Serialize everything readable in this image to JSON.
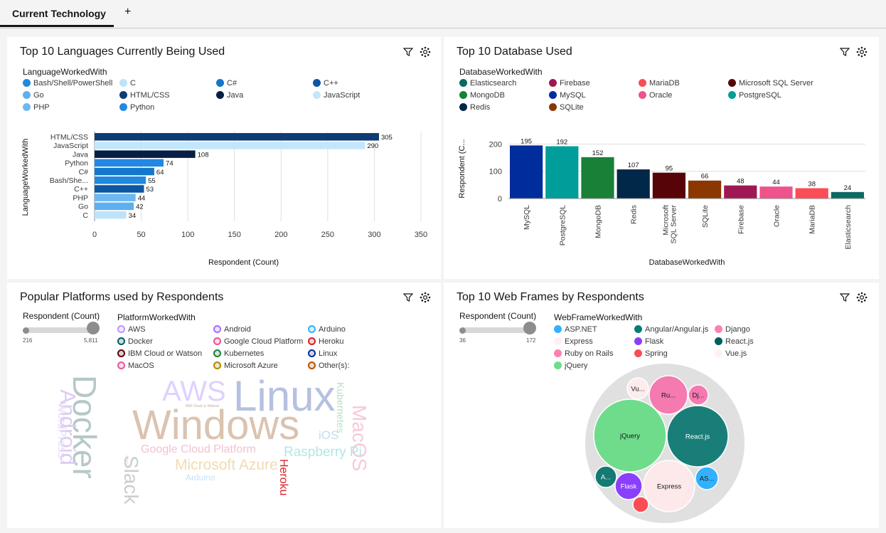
{
  "tabs": {
    "active": "Current Technology",
    "add": "+"
  },
  "panels": {
    "languages": {
      "title": "Top 10 Languages Currently Being Used",
      "legend_title": "LanguageWorkedWith"
    },
    "databases": {
      "title": "Top 10 Database Used",
      "legend_title": "DatabaseWorkedWith"
    },
    "platforms": {
      "title": "Popular Platforms used by Respondents",
      "legend_title": "PlatformWorkedWith",
      "slider_title": "Respondent (Count)",
      "slider_min": "216",
      "slider_max": "5,811"
    },
    "webframes": {
      "title": "Top 10 Web Frames by Respondents",
      "legend_title": "WebFrameWorkedWith",
      "slider_title": "Respondent (Count)",
      "slider_min": "36",
      "slider_max": "172"
    }
  },
  "icons": {
    "filter": "filter-icon",
    "settings": "settings-icon"
  },
  "legends": {
    "languages": [
      {
        "label": "Bash/Shell/PowerShell",
        "color": "#1f8ae0"
      },
      {
        "label": "C",
        "color": "#bde3f8"
      },
      {
        "label": "C#",
        "color": "#1477c9"
      },
      {
        "label": "C++",
        "color": "#0b57a4"
      },
      {
        "label": "Go",
        "color": "#5eaff0"
      },
      {
        "label": "HTML/CSS",
        "color": "#0f3c73"
      },
      {
        "label": "Java",
        "color": "#071f45"
      },
      {
        "label": "JavaScript",
        "color": "#c4e6fb"
      },
      {
        "label": "PHP",
        "color": "#6cb9f2"
      },
      {
        "label": "Python",
        "color": "#2288e3"
      }
    ],
    "databases": [
      {
        "label": "Elasticsearch",
        "color": "#0b6a63"
      },
      {
        "label": "Firebase",
        "color": "#9f1853"
      },
      {
        "label": "MariaDB",
        "color": "#fa4d56"
      },
      {
        "label": "Microsoft SQL Server",
        "color": "#570408"
      },
      {
        "label": "MongoDB",
        "color": "#198038"
      },
      {
        "label": "MySQL",
        "color": "#002d9c"
      },
      {
        "label": "Oracle",
        "color": "#ee538b"
      },
      {
        "label": "PostgreSQL",
        "color": "#009d9a"
      },
      {
        "label": "Redis",
        "color": "#012749"
      },
      {
        "label": "SQLite",
        "color": "#8a3800"
      }
    ],
    "platforms": [
      {
        "label": "AWS",
        "color": "#be95ff"
      },
      {
        "label": "Android",
        "color": "#a56eff"
      },
      {
        "label": "Arduino",
        "color": "#33b1ff"
      },
      {
        "label": "Docker",
        "color": "#005d5d"
      },
      {
        "label": "Google Cloud Platform",
        "color": "#ee538b"
      },
      {
        "label": "Heroku",
        "color": "#da1e28"
      },
      {
        "label": "IBM Cloud or Watson",
        "color": "#570408"
      },
      {
        "label": "Kubernetes",
        "color": "#198038"
      },
      {
        "label": "Linux",
        "color": "#002d9c"
      },
      {
        "label": "MacOS",
        "color": "#ee5396"
      },
      {
        "label": "Microsoft Azure",
        "color": "#b28600"
      },
      {
        "label": "Other(s):",
        "color": "#ba4e00"
      }
    ],
    "webframes": [
      {
        "label": "ASP.NET",
        "color": "#33b1ff"
      },
      {
        "label": "Angular/Angular.js",
        "color": "#007d79"
      },
      {
        "label": "Django",
        "color": "#ff7eb6"
      },
      {
        "label": "Express",
        "color": "#fff1f1"
      },
      {
        "label": "Flask",
        "color": "#8a3ffc"
      },
      {
        "label": "React.js",
        "color": "#005d5d"
      },
      {
        "label": "Ruby on Rails",
        "color": "#ff7eb6"
      },
      {
        "label": "Spring",
        "color": "#fa4d56"
      },
      {
        "label": "Vue.js",
        "color": "#fff1f1"
      },
      {
        "label": "jQuery",
        "color": "#6fdc8c"
      }
    ]
  },
  "chart_data": [
    {
      "type": "bar",
      "orientation": "horizontal",
      "title": "Top 10 Languages Currently Being Used",
      "categories": [
        "HTML/CSS",
        "JavaScript",
        "Java",
        "Python",
        "C#",
        "Bash/She...",
        "C++",
        "PHP",
        "Go",
        "C"
      ],
      "values": [
        305,
        290,
        108,
        74,
        64,
        55,
        53,
        44,
        42,
        34
      ],
      "colors": [
        "#0f3c73",
        "#c4e6fb",
        "#071f45",
        "#2288e3",
        "#1477c9",
        "#1f8ae0",
        "#0b57a4",
        "#6cb9f2",
        "#5eaff0",
        "#bde3f8"
      ],
      "xlabel": "Respondent (Count)",
      "ylabel": "LanguageWorkedWith",
      "xlim": [
        0,
        350
      ],
      "xticks": [
        0,
        50,
        100,
        150,
        200,
        250,
        300,
        350
      ]
    },
    {
      "type": "bar",
      "orientation": "vertical",
      "title": "Top 10 Database Used",
      "categories": [
        "MySQL",
        "PostgreSQL",
        "MongoDB",
        "Redis",
        "Microsoft SQL Server",
        "SQLite",
        "Firebase",
        "Oracle",
        "MariaDB",
        "Elasticsearch"
      ],
      "tick_lines": [
        [
          "MySQL"
        ],
        [
          "PostgreSQL"
        ],
        [
          "MongoDB"
        ],
        [
          "Redis"
        ],
        [
          "Microsoft",
          "SQL Server"
        ],
        [
          "SQLite"
        ],
        [
          "Firebase"
        ],
        [
          "Oracle"
        ],
        [
          "MariaDB"
        ],
        [
          "Elasticsearch"
        ]
      ],
      "values": [
        195,
        192,
        152,
        107,
        95,
        66,
        48,
        44,
        38,
        24
      ],
      "colors": [
        "#002d9c",
        "#009d9a",
        "#198038",
        "#012749",
        "#570408",
        "#8a3800",
        "#9f1853",
        "#ee538b",
        "#fa4d56",
        "#0b6a63"
      ],
      "xlabel": "DatabaseWorkedWith",
      "ylabel": "Respondent (C...",
      "ylim": [
        0,
        230
      ],
      "yticks": [
        0,
        100,
        200
      ]
    },
    {
      "type": "wordcloud",
      "title": "Popular Platforms used by Respondents",
      "words": [
        {
          "text": "Windows",
          "color": "#dac3b0"
        },
        {
          "text": "Linux",
          "color": "#b6c0e0"
        },
        {
          "text": "Docker",
          "color": "#b6c7c7"
        },
        {
          "text": "AWS",
          "color": "#e0d0ff"
        },
        {
          "text": "Android",
          "color": "#dccbf3"
        },
        {
          "text": "Slack",
          "color": "#c8cdd1"
        },
        {
          "text": "MacOS",
          "color": "#f7c9d9"
        },
        {
          "text": "Google Cloud Platform",
          "color": "#f2c2d0"
        },
        {
          "text": "Microsoft Azure",
          "color": "#f0dcb0"
        },
        {
          "text": "Raspberry Pi",
          "color": "#b3e6e6"
        },
        {
          "text": "Heroku",
          "color": "#da1e28"
        },
        {
          "text": "Kubernetes",
          "color": "#b9dec4"
        },
        {
          "text": "WordPress",
          "color": "#e4d9f9"
        },
        {
          "text": "iOS",
          "color": "#c6daf2"
        },
        {
          "text": "Arduino",
          "color": "#c3e2fa"
        },
        {
          "text": "IBM Cloud or Watson",
          "color": "#c9a9a9"
        },
        {
          "text": "Other(s):",
          "color": "#f1d5c0"
        }
      ]
    },
    {
      "type": "bubble",
      "title": "Top 10 Web Frames by Respondents",
      "nodes": [
        {
          "label": "jQuery",
          "short": "jQuery",
          "color": "#6fdc8c",
          "value": 172
        },
        {
          "label": "React.js",
          "short": "React.js",
          "color": "#1a7e78",
          "value": 150
        },
        {
          "label": "Express",
          "short": "Express",
          "color": "#fde9ea",
          "value": 110
        },
        {
          "label": "Ruby on Rails",
          "short": "Ru...",
          "color": "#f47ab0",
          "value": 56
        },
        {
          "label": "Flask",
          "short": "Flask",
          "color": "#8a3ffc",
          "value": 56
        },
        {
          "label": "ASP.NET",
          "short": "AS...",
          "color": "#33b1ff",
          "value": 44
        },
        {
          "label": "Angular/Angular.js",
          "short": "A...",
          "color": "#147a73",
          "value": 40
        },
        {
          "label": "Vue.js",
          "short": "Vu...",
          "color": "#fdecec",
          "value": 40
        },
        {
          "label": "Django",
          "short": "Dj...",
          "color": "#f47ab0",
          "value": 38
        },
        {
          "label": "Spring",
          "short": "",
          "color": "#fa4d56",
          "value": 36
        }
      ]
    }
  ]
}
